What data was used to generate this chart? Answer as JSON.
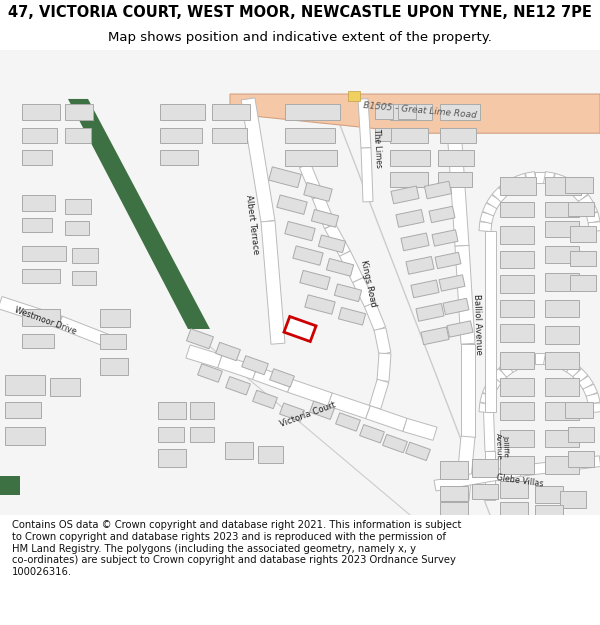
{
  "title_line1": "47, VICTORIA COURT, WEST MOOR, NEWCASTLE UPON TYNE, NE12 7PE",
  "title_line2": "Map shows position and indicative extent of the property.",
  "copyright_text": "Contains OS data © Crown copyright and database right 2021. This information is subject\nto Crown copyright and database rights 2023 and is reproduced with the permission of\nHM Land Registry. The polygons (including the associated geometry, namely x, y\nco-ordinates) are subject to Crown copyright and database rights 2023 Ordnance Survey\n100026316.",
  "bg_color": "#ffffff",
  "map_bg": "#f5f5f5",
  "building_fill": "#e0e0e0",
  "building_edge": "#aaaaaa",
  "road_fill": "#ffffff",
  "road_edge": "#bbbbbb",
  "main_road_fill": "#f5c9a8",
  "main_road_edge": "#d4a080",
  "green_color": "#3d7042",
  "property_color": "#cc0000",
  "title_fontsize": 10.5,
  "subtitle_fontsize": 9.5,
  "copyright_fontsize": 7.2
}
